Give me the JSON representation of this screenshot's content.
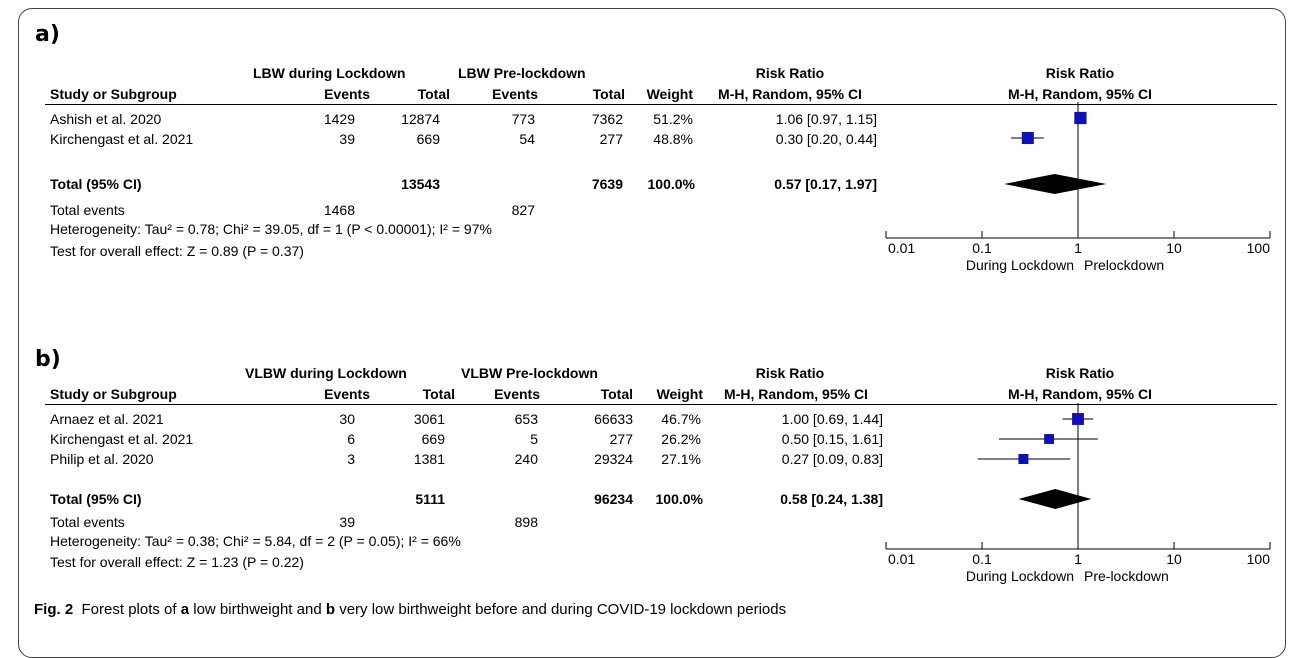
{
  "caption": {
    "fig_label": "Fig. 2",
    "part1": "Forest plots of",
    "a_label": "a",
    "part2": "low birthweight and",
    "b_label": "b",
    "part3": "very low birthweight before and during COVID-19 lockdown periods"
  },
  "panels": [
    {
      "label": "a)",
      "headers": {
        "group1": "LBW during Lockdown",
        "group2": "LBW Pre-lockdown",
        "rr": "Risk Ratio",
        "plot_rr": "Risk Ratio",
        "study": "Study or Subgroup",
        "events1": "Events",
        "total1": "Total",
        "events2": "Events",
        "total2": "Total",
        "weight": "Weight",
        "method": "M-H, Random, 95% CI",
        "plot_method": "M-H, Random, 95% CI"
      },
      "rows": [
        {
          "study": "Ashish et al. 2020",
          "events1": "1429",
          "total1": "12874",
          "events2": "773",
          "total2": "7362",
          "weight": "51.2%",
          "ci": "1.06 [0.97, 1.15]"
        },
        {
          "study": "Kirchengast et al. 2021",
          "events1": "39",
          "total1": "669",
          "events2": "54",
          "total2": "277",
          "weight": "48.8%",
          "ci": "0.30 [0.20, 0.44]"
        }
      ],
      "total": {
        "label": "Total (95% CI)",
        "total1": "13543",
        "total2": "7639",
        "weight": "100.0%",
        "ci": "0.57 [0.17, 1.97]"
      },
      "total_events": {
        "label": "Total events",
        "events1": "1468",
        "events2": "827"
      },
      "heterogeneity": "Heterogeneity: Tau² = 0.78; Chi² = 39.05, df = 1 (P < 0.00001); I² = 97%",
      "overall": "Test for overall effect: Z = 0.89 (P = 0.37)",
      "axis_ticks": [
        "0.01",
        "0.1",
        "1",
        "10",
        "100"
      ],
      "favours_left": "During Lockdown",
      "favours_right": "Prelockdown"
    },
    {
      "label": "b)",
      "headers": {
        "group1": "VLBW during Lockdown",
        "group2": "VLBW Pre-lockdown",
        "rr": "Risk Ratio",
        "plot_rr": "Risk Ratio",
        "study": "Study or Subgroup",
        "events1": "Events",
        "total1": "Total",
        "events2": "Events",
        "total2": "Total",
        "weight": "Weight",
        "method": "M-H, Random, 95% CI",
        "plot_method": "M-H, Random, 95% CI"
      },
      "rows": [
        {
          "study": "Arnaez et al. 2021",
          "events1": "30",
          "total1": "3061",
          "events2": "653",
          "total2": "66633",
          "weight": "46.7%",
          "ci": "1.00 [0.69, 1.44]"
        },
        {
          "study": "Kirchengast et al. 2021",
          "events1": "6",
          "total1": "669",
          "events2": "5",
          "total2": "277",
          "weight": "26.2%",
          "ci": "0.50 [0.15, 1.61]"
        },
        {
          "study": "Philip et al. 2020",
          "events1": "3",
          "total1": "1381",
          "events2": "240",
          "total2": "29324",
          "weight": "27.1%",
          "ci": "0.27 [0.09, 0.83]"
        }
      ],
      "total": {
        "label": "Total (95% CI)",
        "total1": "5111",
        "total2": "96234",
        "weight": "100.0%",
        "ci": "0.58 [0.24, 1.38]"
      },
      "total_events": {
        "label": "Total events",
        "events1": "39",
        "events2": "898"
      },
      "heterogeneity": "Heterogeneity: Tau² = 0.38; Chi² = 5.84, df = 2 (P = 0.05); I² = 66%",
      "overall": "Test for overall effect: Z = 1.23 (P = 0.22)",
      "axis_ticks": [
        "0.01",
        "0.1",
        "1",
        "10",
        "100"
      ],
      "favours_left": "During Lockdown",
      "favours_right": "Pre-lockdown"
    }
  ],
  "chart_data": [
    {
      "type": "forest",
      "scale": "log",
      "xlim": [
        0.01,
        100
      ],
      "studies": [
        {
          "name": "Ashish et al. 2020",
          "rr": 1.06,
          "lo": 0.97,
          "hi": 1.15,
          "weight": 51.2
        },
        {
          "name": "Kirchengast et al. 2021",
          "rr": 0.3,
          "lo": 0.2,
          "hi": 0.44,
          "weight": 48.8
        }
      ],
      "pooled": {
        "rr": 0.57,
        "lo": 0.17,
        "hi": 1.97
      },
      "colors": {
        "marker": "#1010b8",
        "diamond": "#000000",
        "line": "#000000"
      }
    },
    {
      "type": "forest",
      "scale": "log",
      "xlim": [
        0.01,
        100
      ],
      "studies": [
        {
          "name": "Arnaez et al. 2021",
          "rr": 1.0,
          "lo": 0.69,
          "hi": 1.44,
          "weight": 46.7
        },
        {
          "name": "Kirchengast et al. 2021",
          "rr": 0.5,
          "lo": 0.15,
          "hi": 1.61,
          "weight": 26.2
        },
        {
          "name": "Philip et al. 2020",
          "rr": 0.27,
          "lo": 0.09,
          "hi": 0.83,
          "weight": 27.1
        }
      ],
      "pooled": {
        "rr": 0.58,
        "lo": 0.24,
        "hi": 1.38
      },
      "colors": {
        "marker": "#1010b8",
        "diamond": "#000000",
        "line": "#000000"
      }
    }
  ]
}
